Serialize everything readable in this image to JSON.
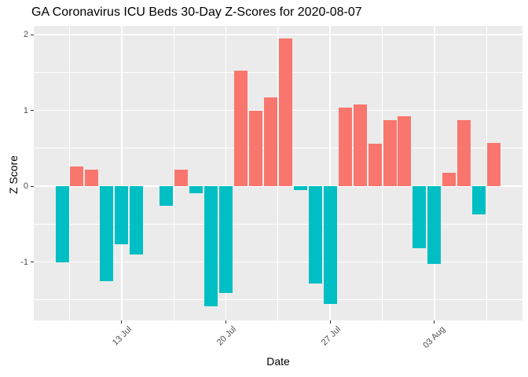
{
  "chart_data": {
    "type": "bar",
    "title": "GA Coronavirus ICU Beds 30-Day Z-Scores for 2020-08-07",
    "xlabel": "Date",
    "ylabel": "Z Score",
    "legend": "none",
    "grid": true,
    "panel_background": "#EBEBEB",
    "gridline_color": "#FFFFFF",
    "categories": [
      "09 Jul",
      "10 Jul",
      "11 Jul",
      "12 Jul",
      "13 Jul",
      "14 Jul",
      "15 Jul",
      "16 Jul",
      "17 Jul",
      "18 Jul",
      "19 Jul",
      "20 Jul",
      "21 Jul",
      "22 Jul",
      "23 Jul",
      "24 Jul",
      "25 Jul",
      "26 Jul",
      "27 Jul",
      "28 Jul",
      "29 Jul",
      "30 Jul",
      "31 Jul",
      "01 Aug",
      "02 Aug",
      "03 Aug",
      "04 Aug",
      "05 Aug",
      "06 Aug",
      "07 Aug"
    ],
    "values": [
      -1.0,
      0.26,
      0.22,
      -1.25,
      -0.77,
      -0.9,
      0.0,
      -0.26,
      0.22,
      -0.09,
      -1.59,
      -1.41,
      1.52,
      1.0,
      1.17,
      1.95,
      -0.05,
      -1.29,
      -1.55,
      1.04,
      1.08,
      0.56,
      0.87,
      0.92,
      -0.82,
      -1.03,
      0.18,
      0.87,
      -0.37,
      0.57
    ],
    "colors": {
      "positive": "#F8766D",
      "negative": "#00BFC4",
      "tick_label": "#4D4D4D",
      "tick_mark": "#333333",
      "axis_title": "#000000",
      "title": "#000000"
    },
    "ylim": [
      -1.772,
      2.114
    ],
    "y_major_ticks": [
      2,
      1,
      0,
      -1
    ],
    "y_tick_labels": [
      "2",
      "1",
      "0",
      "-1"
    ],
    "y_minor_ticks": [
      1.5,
      0.5,
      -0.5,
      -1.5
    ],
    "x_major_ticks": [
      {
        "index": 4,
        "label": "13 Jul"
      },
      {
        "index": 11,
        "label": "20 Jul"
      },
      {
        "index": 18,
        "label": "27 Jul"
      },
      {
        "index": 25,
        "label": "03 Aug"
      }
    ],
    "x_minor_tick_indices": [
      0.5,
      7.5,
      14.5,
      21.5,
      28.5
    ]
  }
}
